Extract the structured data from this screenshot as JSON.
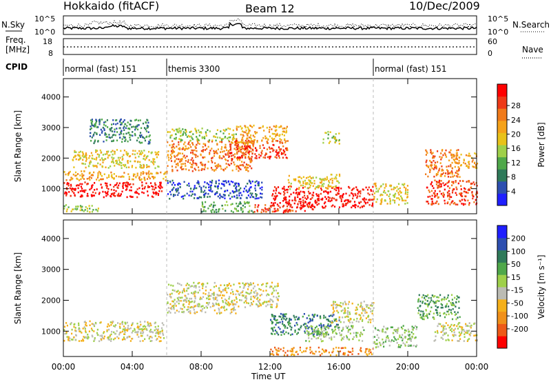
{
  "header": {
    "station": "Hokkaido (fitACF)",
    "beam": "Beam 12",
    "date": "10/Dec/2009"
  },
  "top_panel": {
    "left_label": "N.Sky",
    "right_label": "N.Search",
    "left_ticks": [
      "10^5",
      "10^0"
    ],
    "right_ticks": [
      "10^5",
      "10^0"
    ]
  },
  "freq_panel": {
    "left_label_1": "Freq.",
    "left_label_2": "[MHz]",
    "left_ticks": [
      "18",
      "8"
    ],
    "right_ticks": [
      "60",
      "0"
    ],
    "right_label": "Nave"
  },
  "cpid_panel": {
    "label": "CPID",
    "segments": [
      {
        "text": "normal (fast) 151",
        "start_h": 0,
        "end_h": 6
      },
      {
        "text": "themis 3300",
        "start_h": 6,
        "end_h": 18
      },
      {
        "text": "normal (fast) 151",
        "start_h": 18,
        "end_h": 24
      }
    ]
  },
  "chart_data": [
    {
      "type": "heatmap",
      "title": "",
      "xlabel": "Time UT",
      "ylabel": "Slant Range [km]",
      "x_ticks": [
        "00:00",
        "04:00",
        "08:00",
        "12:00",
        "16:00",
        "20:00",
        "00:00"
      ],
      "y_ticks": [
        "1000",
        "2000",
        "3000",
        "4000"
      ],
      "xlim_h": [
        0,
        24
      ],
      "ylim": [
        180,
        4600
      ],
      "colorbar": {
        "label": "Power [dB]",
        "ticks": [
          "4",
          "8",
          "12",
          "16",
          "20",
          "24",
          "28"
        ],
        "colors": [
          "#1f1fff",
          "#2d4fb0",
          "#2f7a5a",
          "#4fa84a",
          "#9fd04a",
          "#e8c21a",
          "#f5a21a",
          "#f07a1a",
          "#ee3a18",
          "#ff0000"
        ]
      },
      "blobs": [
        {
          "t0": 0.0,
          "t1": 5.8,
          "r0": 750,
          "r1": 1250,
          "lvl": 9
        },
        {
          "t0": 0.0,
          "t1": 6.0,
          "r0": 1300,
          "r1": 1600,
          "lvl": 6
        },
        {
          "t0": 0.5,
          "t1": 5.5,
          "r0": 1700,
          "r1": 2300,
          "lvl": 5
        },
        {
          "t0": 1.5,
          "t1": 5.0,
          "r0": 2500,
          "r1": 3300,
          "lvl": 2
        },
        {
          "t0": 0.0,
          "t1": 2.0,
          "r0": 250,
          "r1": 500,
          "lvl": 4
        },
        {
          "t0": 6.0,
          "t1": 11.0,
          "r0": 1600,
          "r1": 2600,
          "lvl": 7
        },
        {
          "t0": 6.0,
          "t1": 10.0,
          "r0": 2600,
          "r1": 3000,
          "lvl": 4
        },
        {
          "t0": 6.0,
          "t1": 11.5,
          "r0": 700,
          "r1": 1300,
          "lvl": 1
        },
        {
          "t0": 8.0,
          "t1": 11.0,
          "r0": 250,
          "r1": 600,
          "lvl": 3
        },
        {
          "t0": 9.5,
          "t1": 13.0,
          "r0": 2000,
          "r1": 2600,
          "lvl": 8
        },
        {
          "t0": 10.0,
          "t1": 13.0,
          "r0": 2500,
          "r1": 3100,
          "lvl": 6
        },
        {
          "t0": 12.0,
          "t1": 18.0,
          "r0": 400,
          "r1": 1100,
          "lvl": 9
        },
        {
          "t0": 11.0,
          "t1": 14.5,
          "r0": 250,
          "r1": 500,
          "lvl": 8
        },
        {
          "t0": 13.0,
          "t1": 16.0,
          "r0": 1000,
          "r1": 1500,
          "lvl": 5
        },
        {
          "t0": 15.0,
          "t1": 16.0,
          "r0": 2500,
          "r1": 2900,
          "lvl": 4
        },
        {
          "t0": 18.0,
          "t1": 20.0,
          "r0": 500,
          "r1": 1200,
          "lvl": 5
        },
        {
          "t0": 21.0,
          "t1": 24.0,
          "r0": 500,
          "r1": 1300,
          "lvl": 8
        },
        {
          "t0": 21.0,
          "t1": 23.0,
          "r0": 1400,
          "r1": 2300,
          "lvl": 7
        },
        {
          "t0": 22.5,
          "t1": 24.0,
          "r0": 1700,
          "r1": 2200,
          "lvl": 6
        }
      ]
    },
    {
      "type": "heatmap",
      "title": "",
      "xlabel": "Time UT",
      "ylabel": "Slant Range [km]",
      "x_ticks": [
        "00:00",
        "04:00",
        "08:00",
        "12:00",
        "16:00",
        "20:00",
        "00:00"
      ],
      "y_ticks": [
        "1000",
        "2000",
        "3000",
        "4000"
      ],
      "xlim_h": [
        0,
        24
      ],
      "ylim": [
        180,
        4600
      ],
      "colorbar": {
        "label": "Velocity [m s⁻¹]",
        "ticks": [
          "200",
          "100",
          "50",
          "15",
          "-15",
          "-50",
          "-100",
          "-200"
        ],
        "colors": [
          "#1f1fff",
          "#2d4fb0",
          "#2f7a5a",
          "#4fa84a",
          "#9fd04a",
          "#bcbcb4",
          "#f5b01a",
          "#f0901a",
          "#ee5a18",
          "#ff0000"
        ]
      },
      "blobs": [
        {
          "t0": 0.0,
          "t1": 5.8,
          "r0": 700,
          "r1": 1350,
          "lvl": 5
        },
        {
          "t0": 6.0,
          "t1": 10.0,
          "r0": 1600,
          "r1": 2600,
          "lvl": 5
        },
        {
          "t0": 10.0,
          "t1": 12.5,
          "r0": 1800,
          "r1": 2600,
          "lvl": 5
        },
        {
          "t0": 12.0,
          "t1": 16.0,
          "r0": 900,
          "r1": 1600,
          "lvl": 2
        },
        {
          "t0": 14.0,
          "t1": 17.5,
          "r0": 700,
          "r1": 1200,
          "lvl": 4
        },
        {
          "t0": 12.0,
          "t1": 18.0,
          "r0": 250,
          "r1": 500,
          "lvl": 7
        },
        {
          "t0": 15.5,
          "t1": 18.0,
          "r0": 1300,
          "r1": 2000,
          "lvl": 5
        },
        {
          "t0": 18.0,
          "t1": 20.5,
          "r0": 500,
          "r1": 1200,
          "lvl": 4
        },
        {
          "t0": 21.5,
          "t1": 24.0,
          "r0": 700,
          "r1": 1300,
          "lvl": 5
        },
        {
          "t0": 20.5,
          "t1": 23.0,
          "r0": 1400,
          "r1": 2200,
          "lvl": 3
        }
      ]
    }
  ],
  "xlabel": "Time UT"
}
